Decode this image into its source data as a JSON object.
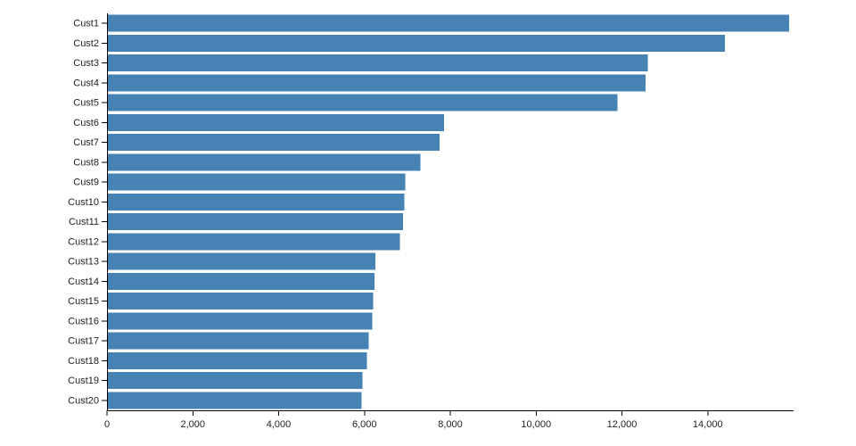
{
  "chart_data": {
    "type": "bar",
    "orientation": "horizontal",
    "title": "",
    "xlabel": "",
    "ylabel": "",
    "categories": [
      "Cust1",
      "Cust2",
      "Cust3",
      "Cust4",
      "Cust5",
      "Cust6",
      "Cust7",
      "Cust8",
      "Cust9",
      "Cust10",
      "Cust11",
      "Cust12",
      "Cust13",
      "Cust14",
      "Cust15",
      "Cust16",
      "Cust17",
      "Cust18",
      "Cust19",
      "Cust20"
    ],
    "values": [
      15900,
      14400,
      12600,
      12550,
      11900,
      7850,
      7750,
      7300,
      6950,
      6930,
      6900,
      6830,
      6250,
      6230,
      6200,
      6180,
      6100,
      6060,
      5950,
      5930
    ],
    "xlim": [
      0,
      16000
    ],
    "xticks": [
      0,
      2000,
      4000,
      6000,
      8000,
      10000,
      12000,
      14000
    ],
    "xtick_labels": [
      "0",
      "2,000",
      "4,000",
      "6,000",
      "8,000",
      "10,000",
      "12,000",
      "14,000"
    ],
    "grid": false,
    "legend": "none",
    "bar_color": "#4682b4",
    "axis_color": "#000000",
    "label_color": "#222222"
  }
}
